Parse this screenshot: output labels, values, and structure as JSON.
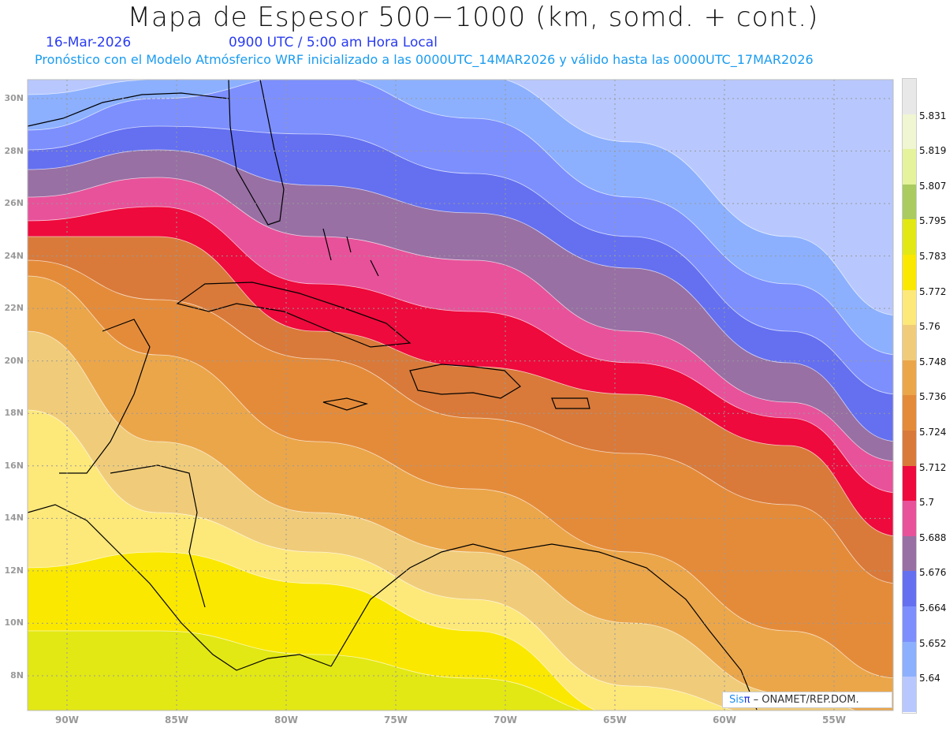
{
  "header": {
    "title": "Mapa de Espesor 500−1000 (km, somd. + cont.)",
    "date": "16-Mar-2026",
    "time": "0900 UTC / 5:00 am Hora Local",
    "info": "Pronóstico con el Modelo Atmósferico WRF inicializado a las 0000UTC_14MAR2026 y válido hasta las  0000UTC_17MAR2026"
  },
  "axes": {
    "lat_labels": [
      "30N",
      "28N",
      "26N",
      "24N",
      "22N",
      "20N",
      "18N",
      "16N",
      "14N",
      "12N",
      "10N",
      "8N"
    ],
    "lat_values": [
      30,
      28,
      26,
      24,
      22,
      20,
      18,
      16,
      14,
      12,
      10,
      8
    ],
    "lon_labels": [
      "90W",
      "85W",
      "80W",
      "75W",
      "70W",
      "65W",
      "60W",
      "55W"
    ],
    "lon_values": [
      -90,
      -85,
      -80,
      -75,
      -70,
      -65,
      -60,
      -55
    ]
  },
  "colorbar": {
    "colors": [
      "#e8e8e8",
      "#f0f5d2",
      "#e5f39c",
      "#a9cb60",
      "#e2e814",
      "#fae800",
      "#fde87a",
      "#f0cc7a",
      "#eba64a",
      "#e48b3a",
      "#d97a3a",
      "#ee0a3c",
      "#e8529a",
      "#9870a4",
      "#6470f0",
      "#7d8ffd",
      "#8cb0fe",
      "#b8c8fe"
    ],
    "levels": [
      "5.831",
      "5.819",
      "5.807",
      "5.795",
      "5.783",
      "5.772",
      "5.76",
      "5.748",
      "5.736",
      "5.724",
      "5.712",
      "5.7",
      "5.688",
      "5.676",
      "5.664",
      "5.652",
      "5.64"
    ]
  },
  "credit": {
    "logo_text": "Sis",
    "logo_pi": "π",
    "text": "– ONAMET/REP.DOM."
  }
}
